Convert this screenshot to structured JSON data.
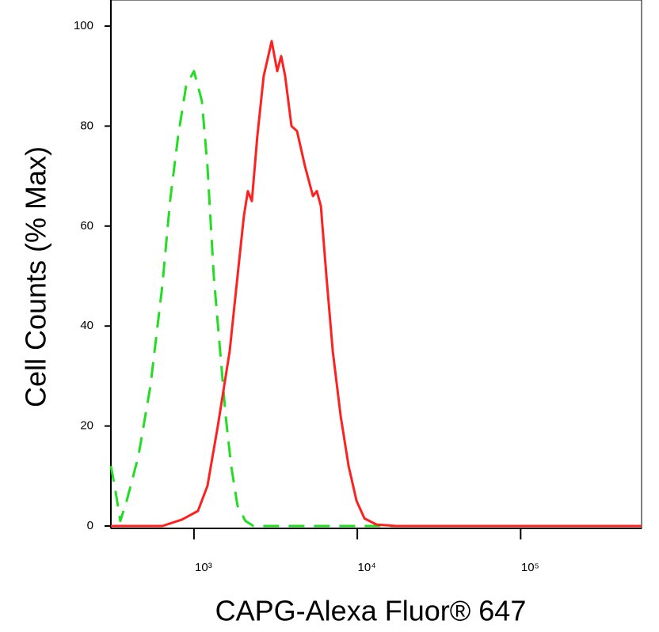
{
  "chart_data": {
    "type": "line",
    "x_label": "CAPG-Alexa Fluor® 647",
    "y_label": "Cell Counts (% Max)",
    "xscale": "log",
    "xlim": [
      310,
      550000
    ],
    "ylim": [
      0,
      100
    ],
    "xticks": [
      {
        "value": 1000,
        "label": "10³"
      },
      {
        "value": 10000,
        "label": "10⁴"
      },
      {
        "value": 100000,
        "label": "10⁵"
      }
    ],
    "yticks": [
      0,
      20,
      40,
      60,
      80,
      100
    ],
    "series": [
      {
        "color": "#22dd22",
        "dash": true,
        "x": [
          310,
          327,
          354,
          387,
          457,
          541,
          640,
          714,
          800,
          894,
          1000,
          1118,
          1209,
          1322,
          1446,
          1563,
          1691,
          1848,
          2070,
          2312,
          550000
        ],
        "values": [
          12,
          8,
          1,
          5,
          14,
          28,
          48,
          65,
          78,
          88,
          91,
          85,
          72,
          50,
          35,
          22,
          12,
          4,
          1,
          0,
          0
        ]
      },
      {
        "color": "#ff2020",
        "dash": false,
        "x": [
          310,
          640,
          846,
          1057,
          1209,
          1399,
          1654,
          1848,
          2022,
          2138,
          2262,
          2444,
          2673,
          2989,
          3233,
          3421,
          3616,
          3955,
          4276,
          4782,
          5349,
          5654,
          5980,
          6469,
          7074,
          7909,
          8846,
          9894,
          11066,
          13092,
          17304,
          550000
        ],
        "values": [
          0,
          0,
          1.3,
          3,
          8,
          20,
          35,
          50,
          62,
          67,
          65,
          78,
          90,
          97,
          91,
          94,
          90,
          80,
          79,
          72,
          66,
          67,
          64,
          50,
          35,
          22,
          12,
          5,
          1.5,
          0.3,
          0,
          0
        ]
      }
    ]
  }
}
